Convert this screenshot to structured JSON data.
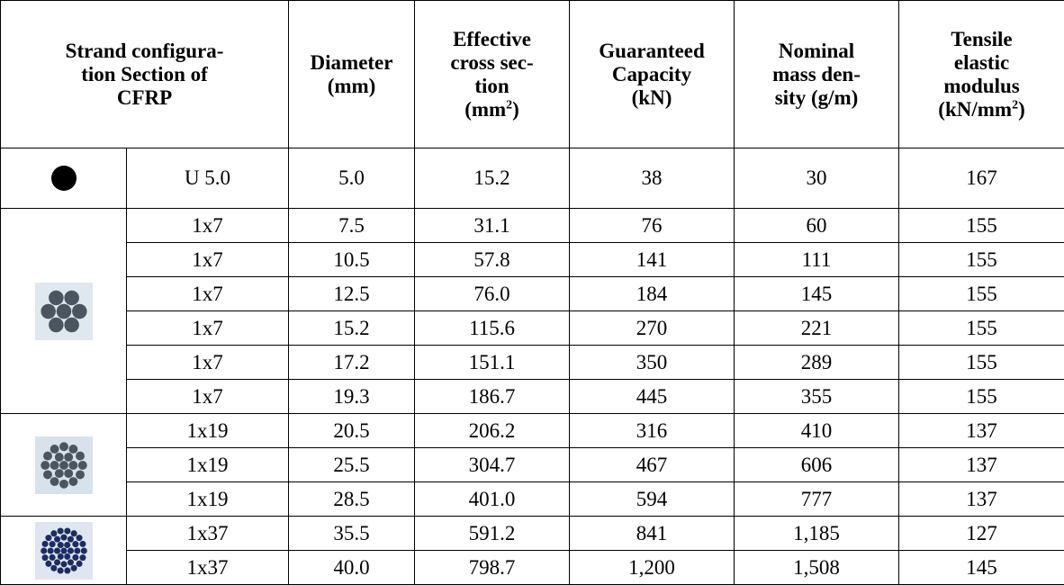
{
  "header": {
    "cells": [
      {
        "lines": [
          "Strand configura-",
          "tion Section of",
          "CFRP"
        ]
      },
      {
        "lines": [
          "Diameter",
          "(mm)"
        ]
      },
      {
        "lines": [
          "Effective",
          "cross sec-",
          "tion"
        ],
        "unit": [
          "(mm",
          "2",
          ")"
        ]
      },
      {
        "lines": [
          "Guaranteed",
          "Capacity",
          "(kN)"
        ]
      },
      {
        "lines": [
          "Nominal",
          "mass den-",
          "sity (g/m)"
        ]
      },
      {
        "lines": [
          "Tensile",
          "elastic",
          "modulus"
        ],
        "unit": [
          "(kN/mm",
          "2",
          ")"
        ]
      }
    ]
  },
  "groups": [
    {
      "rows": [
        [
          "U 5.0",
          "5.0",
          "15.2",
          "38",
          "30",
          "167"
        ]
      ]
    },
    {
      "rows": [
        [
          "1x7",
          "7.5",
          "31.1",
          "76",
          "60",
          "155"
        ],
        [
          "1x7",
          "10.5",
          "57.8",
          "141",
          "111",
          "155"
        ],
        [
          "1x7",
          "12.5",
          "76.0",
          "184",
          "145",
          "155"
        ],
        [
          "1x7",
          "15.2",
          "115.6",
          "270",
          "221",
          "155"
        ],
        [
          "1x7",
          "17.2",
          "151.1",
          "350",
          "289",
          "155"
        ],
        [
          "1x7",
          "19.3",
          "186.7",
          "445",
          "355",
          "155"
        ]
      ]
    },
    {
      "rows": [
        [
          "1x19",
          "20.5",
          "206.2",
          "316",
          "410",
          "137"
        ],
        [
          "1x19",
          "25.5",
          "304.7",
          "467",
          "606",
          "137"
        ],
        [
          "1x19",
          "28.5",
          "401.0",
          "594",
          "777",
          "137"
        ]
      ]
    },
    {
      "rows": [
        [
          "1x37",
          "35.5",
          "591.2",
          "841",
          "1,185",
          "127"
        ],
        [
          "1x37",
          "40.0",
          "798.7",
          "1,200",
          "1,508",
          "145"
        ]
      ]
    }
  ]
}
